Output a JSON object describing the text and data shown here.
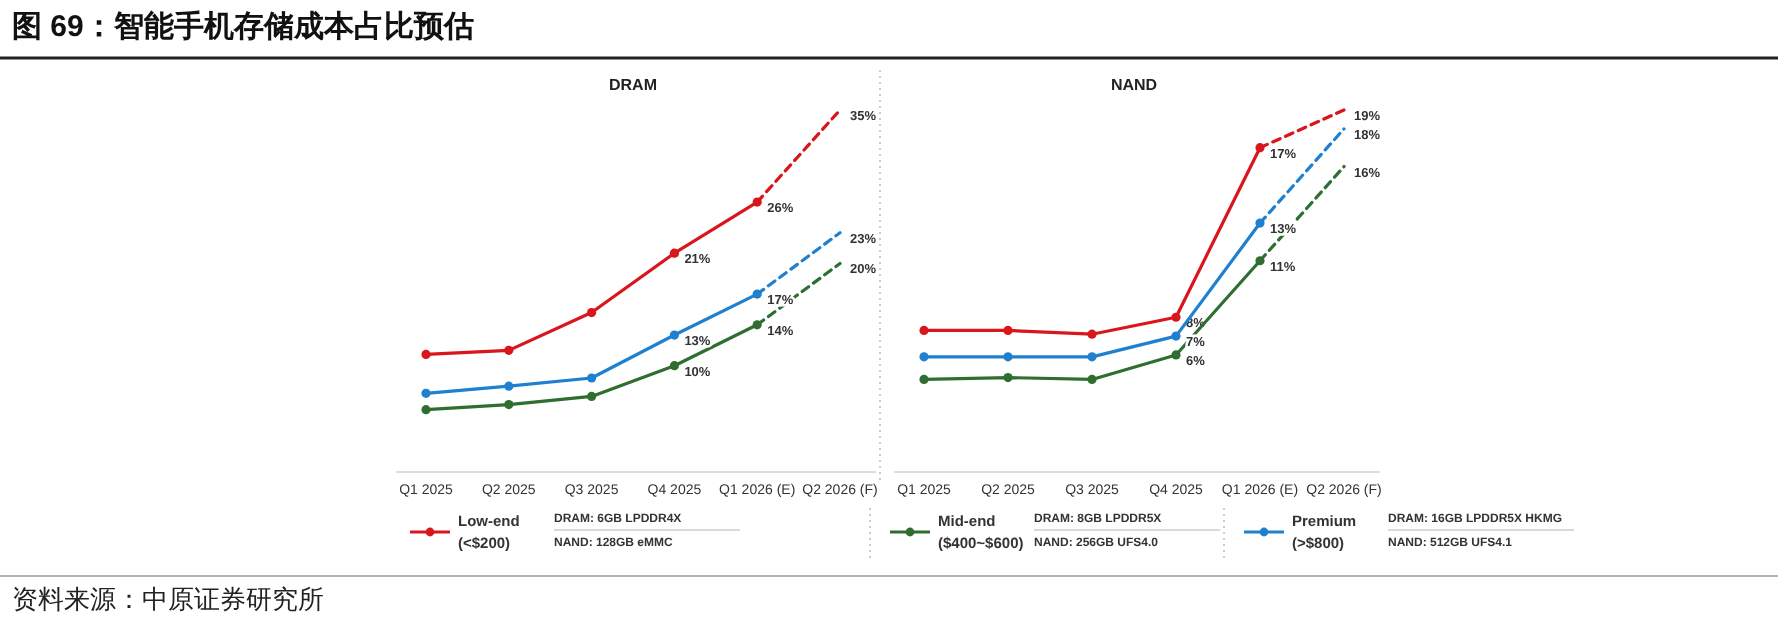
{
  "chart_data": [
    {
      "type": "line",
      "title": "DRAM",
      "categories": [
        "Q1 2025",
        "Q2 2025",
        "Q3 2025",
        "Q4 2025",
        "Q1 2026 (E)",
        "Q2 2026 (F)"
      ],
      "marker": "circle",
      "legend": "bottom",
      "series": [
        {
          "name": "Low-end (<$200)",
          "color": "#d9161c",
          "line_style": "solid",
          "values": [
            11.1,
            11.5,
            15.2,
            21,
            26,
            null
          ],
          "value_labels": [
            null,
            null,
            null,
            "21%",
            "26%",
            null
          ]
        },
        {
          "color": "#d9161c",
          "line_style": "dashed",
          "marker": "none",
          "values": [
            null,
            null,
            null,
            null,
            26,
            35
          ],
          "value_labels": [
            null,
            null,
            null,
            null,
            null,
            "35%"
          ]
        },
        {
          "name": "Mid-end ($400~$600)",
          "color": "#2f6e30",
          "line_style": "solid",
          "values": [
            5.7,
            6.2,
            7.0,
            10,
            14,
            null
          ],
          "value_labels": [
            null,
            null,
            null,
            "10%",
            "14%",
            null
          ]
        },
        {
          "color": "#2f6e30",
          "line_style": "dashed",
          "marker": "none",
          "values": [
            null,
            null,
            null,
            null,
            14,
            20
          ],
          "value_labels": [
            null,
            null,
            null,
            null,
            null,
            "20%"
          ]
        },
        {
          "name": "Premium (>$800)",
          "color": "#1f80d0",
          "line_style": "solid",
          "values": [
            7.3,
            8.0,
            8.8,
            13,
            17,
            null
          ],
          "value_labels": [
            null,
            null,
            null,
            "13%",
            "17%",
            null
          ]
        },
        {
          "color": "#1f80d0",
          "line_style": "dashed",
          "marker": "none",
          "values": [
            null,
            null,
            null,
            null,
            17,
            23
          ],
          "value_labels": [
            null,
            null,
            null,
            null,
            null,
            "23%"
          ]
        }
      ],
      "annotations": [
        "图 69：智能手机存储成本占比预估",
        "DRAM: 6GB LPDDR4X",
        "NAND: 128GB eMMC",
        "DRAM: 8GB LPDDR5X",
        "NAND: 256GB UFS4.0",
        "DRAM: 16GB LPDDR5X HKMG",
        "NAND: 512GB UFS4.1",
        "资料来源：中原证券研究所"
      ]
    },
    {
      "type": "line",
      "title": "NAND",
      "categories": [
        "Q1 2025",
        "Q2 2025",
        "Q3 2025",
        "Q4 2025",
        "Q1 2026 (E)",
        "Q2 2026 (F)"
      ],
      "marker": "circle",
      "series": [
        {
          "color": "#d9161c",
          "line_style": "solid",
          "values": [
            7.3,
            7.3,
            7.1,
            8,
            17,
            null
          ],
          "value_labels": [
            null,
            null,
            null,
            "8%",
            "17%",
            null
          ]
        },
        {
          "color": "#d9161c",
          "line_style": "dashed",
          "marker": "none",
          "values": [
            null,
            null,
            null,
            null,
            17,
            19
          ],
          "value_labels": [
            null,
            null,
            null,
            null,
            null,
            "19%"
          ]
        },
        {
          "color": "#2f6e30",
          "line_style": "solid",
          "values": [
            4.7,
            4.8,
            4.7,
            6,
            11,
            null
          ],
          "value_labels": [
            null,
            null,
            null,
            "6%",
            "11%",
            null
          ]
        },
        {
          "color": "#2f6e30",
          "line_style": "dashed",
          "marker": "none",
          "values": [
            null,
            null,
            null,
            null,
            11,
            16
          ],
          "value_labels": [
            null,
            null,
            null,
            null,
            null,
            "16%"
          ]
        },
        {
          "color": "#1f80d0",
          "line_style": "solid",
          "values": [
            5.9,
            5.9,
            5.9,
            7,
            13,
            null
          ],
          "value_labels": [
            null,
            null,
            null,
            "7%",
            "13%",
            null
          ]
        },
        {
          "color": "#1f80d0",
          "line_style": "dashed",
          "marker": "none",
          "values": [
            null,
            null,
            null,
            null,
            13,
            18
          ],
          "value_labels": [
            null,
            null,
            null,
            null,
            null,
            "18%"
          ]
        }
      ]
    }
  ]
}
